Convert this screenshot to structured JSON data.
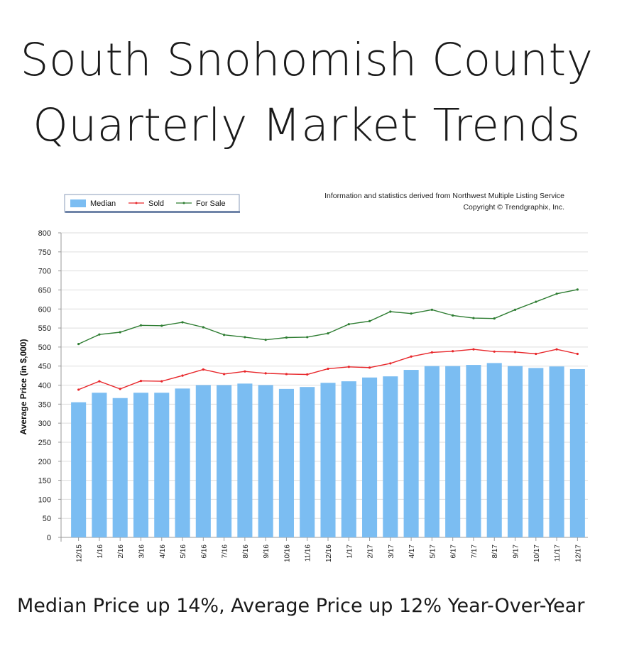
{
  "title": [
    "South Snohomish County",
    "Quarterly Market Trends"
  ],
  "caption": "Median Price up 14%, Average Price up 12% Year-Over-Year",
  "source_note": [
    "Information and statistics derived from Northwest Multiple Listing Service",
    "Copyright © Trendgraphix, Inc."
  ],
  "colors": {
    "median": "#7bbdf2",
    "sold": "#e8262a",
    "for_sale": "#2e7d32",
    "grid": "#dddddd"
  },
  "chart_data": {
    "type": "bar",
    "ylabel": "Average Price (in $,000)",
    "xlabel": "",
    "ylim": [
      0,
      800
    ],
    "yticks": [
      0,
      50,
      100,
      150,
      200,
      250,
      300,
      350,
      400,
      450,
      500,
      550,
      600,
      650,
      700,
      750,
      800
    ],
    "grid": true,
    "legend_position": "top-left",
    "categories": [
      "12/15",
      "1/16",
      "2/16",
      "3/16",
      "4/16",
      "5/16",
      "6/16",
      "7/16",
      "8/16",
      "9/16",
      "10/16",
      "11/16",
      "12/16",
      "1/17",
      "2/17",
      "3/17",
      "4/17",
      "5/17",
      "6/17",
      "7/17",
      "8/17",
      "9/17",
      "10/17",
      "11/17",
      "12/17"
    ],
    "series": [
      {
        "name": "Median",
        "kind": "bar",
        "values": [
          355,
          380,
          366,
          380,
          380,
          391,
          400,
          400,
          404,
          400,
          390,
          395,
          406,
          410,
          420,
          423,
          440,
          450,
          450,
          453,
          458,
          450,
          445,
          449,
          442
        ]
      },
      {
        "name": "Sold",
        "kind": "line",
        "values": [
          388,
          410,
          390,
          411,
          410,
          425,
          441,
          429,
          436,
          431,
          429,
          428,
          443,
          448,
          446,
          457,
          475,
          486,
          489,
          494,
          488,
          487,
          482,
          494,
          482
        ]
      },
      {
        "name": "For Sale",
        "kind": "line",
        "values": [
          508,
          533,
          539,
          557,
          556,
          565,
          552,
          532,
          526,
          519,
          525,
          526,
          536,
          560,
          568,
          593,
          588,
          598,
          583,
          576,
          575,
          598,
          619,
          640,
          651
        ]
      }
    ]
  }
}
